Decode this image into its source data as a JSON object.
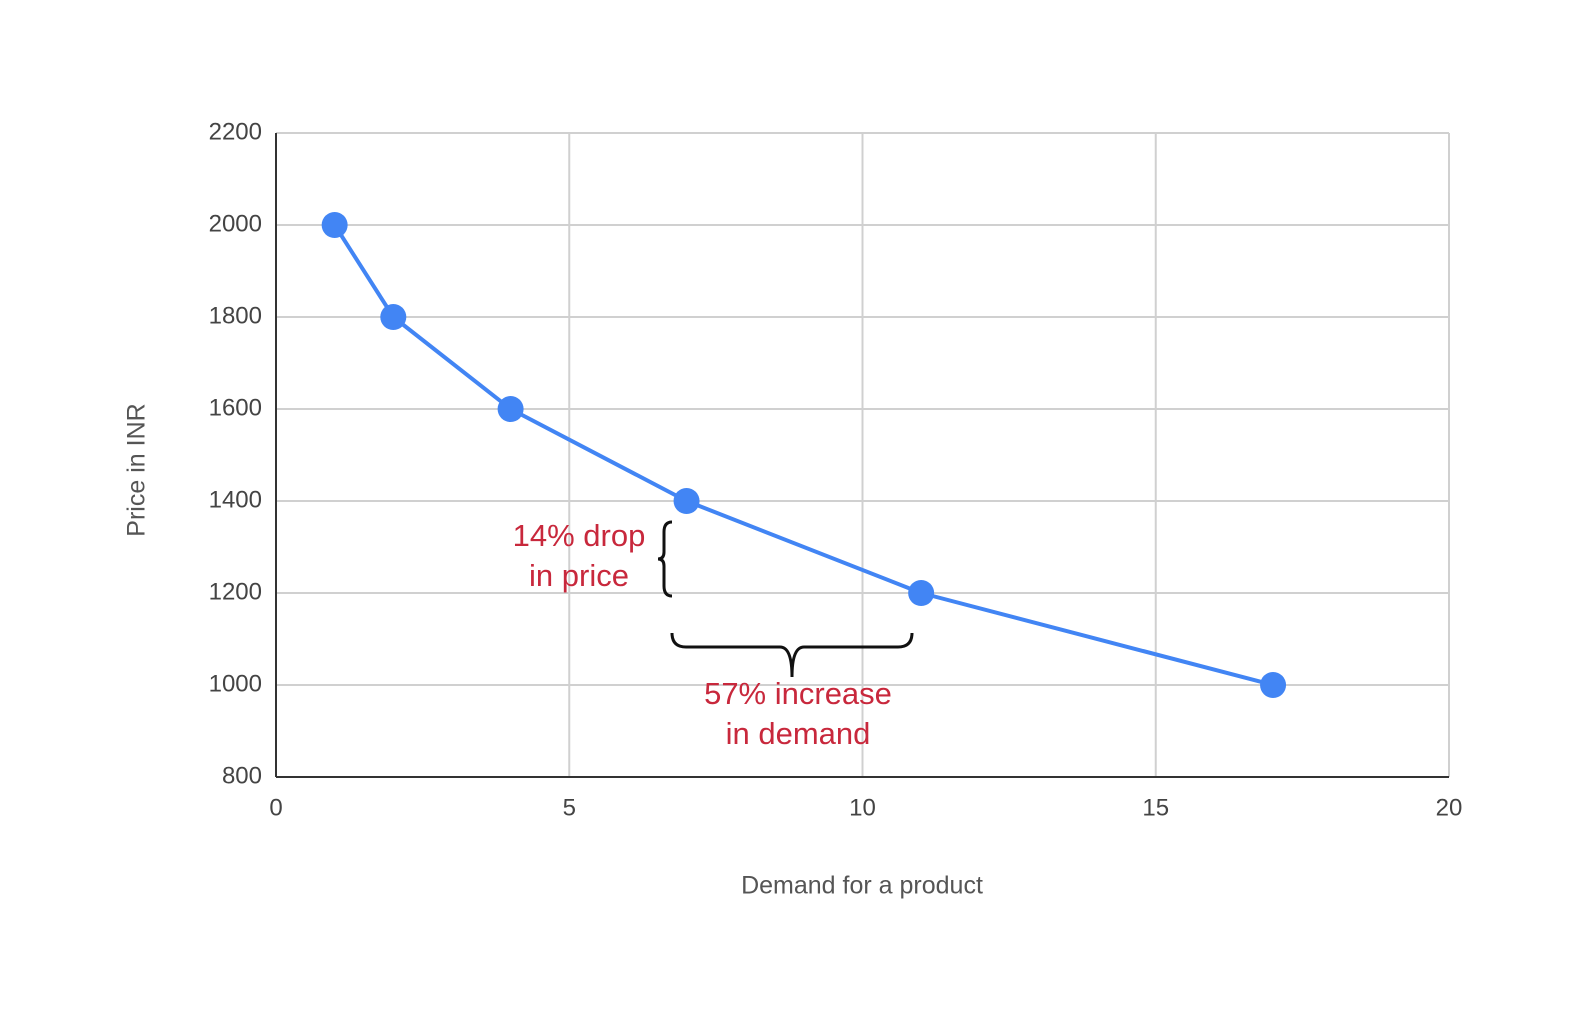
{
  "chart_data": {
    "type": "line",
    "x_label": "Demand for a product",
    "y_label": "Price in INR",
    "x": [
      1,
      2,
      4,
      7,
      11,
      17
    ],
    "values": [
      2000,
      1800,
      1600,
      1400,
      1200,
      1000
    ],
    "color": "#4285f4",
    "xlim": [
      0,
      20
    ],
    "xticks": [
      0,
      5,
      10,
      15,
      20
    ],
    "ylim": [
      800,
      2200
    ],
    "yticks": [
      800,
      1000,
      1200,
      1400,
      1600,
      1800,
      2000,
      2200
    ],
    "grid": true,
    "annotations": [
      {
        "lines": [
          "14% drop",
          "in price"
        ]
      },
      {
        "lines": [
          "57% increase",
          "in demand"
        ]
      }
    ]
  }
}
